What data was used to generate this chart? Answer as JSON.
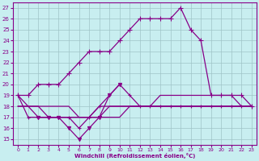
{
  "xlabel": "Windchill (Refroidissement éolien,°C)",
  "xlim": [
    -0.5,
    23.5
  ],
  "ylim": [
    14.5,
    27.5
  ],
  "yticks": [
    15,
    16,
    17,
    18,
    19,
    20,
    21,
    22,
    23,
    24,
    25,
    26,
    27
  ],
  "xticks": [
    0,
    1,
    2,
    3,
    4,
    5,
    6,
    7,
    8,
    9,
    10,
    11,
    12,
    13,
    14,
    15,
    16,
    17,
    18,
    19,
    20,
    21,
    22,
    23
  ],
  "bg_color": "#c8eef0",
  "line_color": "#880088",
  "grid_color": "#9fc4c7",
  "lines": [
    {
      "x": [
        0,
        1,
        2,
        3,
        4,
        5,
        6,
        7,
        8,
        9,
        10,
        11,
        12,
        13,
        14,
        15,
        16,
        17,
        18,
        19,
        20,
        21,
        22,
        23
      ],
      "y": [
        19,
        19,
        20,
        20,
        20,
        21,
        22,
        23,
        23,
        23,
        24,
        25,
        26,
        26,
        26,
        26,
        27,
        25,
        24,
        19,
        19,
        19,
        19,
        18
      ],
      "marker": "+",
      "markersize": 4,
      "linewidth": 0.9
    },
    {
      "x": [
        0,
        1,
        2,
        3,
        4,
        5,
        6,
        7,
        8,
        9,
        10,
        11,
        12,
        13,
        14,
        15,
        16,
        17,
        18,
        19,
        20,
        21,
        22,
        23
      ],
      "y": [
        19,
        17,
        17,
        17,
        17,
        17,
        16,
        17,
        18,
        19,
        20,
        19,
        18,
        18,
        18,
        18,
        18,
        18,
        18,
        18,
        18,
        18,
        18,
        18
      ],
      "marker": "+",
      "markersize": 3,
      "linewidth": 0.9
    },
    {
      "x": [
        0,
        1,
        2,
        3,
        4,
        5,
        6,
        7,
        8,
        9,
        10,
        11,
        12,
        13,
        14,
        15,
        16,
        17,
        18,
        19,
        20,
        21,
        22,
        23
      ],
      "y": [
        19,
        18,
        18,
        17,
        17,
        17,
        17,
        17,
        17,
        18,
        18,
        18,
        18,
        18,
        18,
        18,
        18,
        18,
        18,
        18,
        18,
        18,
        18,
        18
      ],
      "marker": null,
      "markersize": 0,
      "linewidth": 0.9
    },
    {
      "x": [
        0,
        1,
        2,
        3,
        4,
        5,
        6,
        7,
        8,
        9,
        10,
        11,
        12,
        13,
        14,
        15,
        16,
        17,
        18,
        19,
        20,
        21,
        22,
        23
      ],
      "y": [
        18,
        18,
        18,
        18,
        18,
        18,
        17,
        17,
        18,
        18,
        18,
        18,
        18,
        18,
        19,
        19,
        19,
        19,
        19,
        19,
        19,
        19,
        18,
        18
      ],
      "marker": null,
      "markersize": 0,
      "linewidth": 0.9
    },
    {
      "x": [
        0,
        1,
        2,
        3,
        4,
        5,
        6,
        7,
        8,
        9,
        10,
        11,
        12,
        13,
        14,
        15,
        16,
        17,
        18,
        19,
        20,
        21,
        22,
        23
      ],
      "y": [
        18,
        18,
        17,
        17,
        17,
        17,
        17,
        17,
        17,
        17,
        17,
        18,
        18,
        18,
        18,
        18,
        18,
        18,
        18,
        18,
        18,
        18,
        18,
        18
      ],
      "marker": null,
      "markersize": 0,
      "linewidth": 0.9
    },
    {
      "x": [
        2,
        3,
        4,
        5,
        6,
        7,
        8,
        9,
        10
      ],
      "y": [
        17,
        17,
        17,
        16,
        15,
        16,
        17,
        19,
        20
      ],
      "marker": "v",
      "markersize": 3,
      "linewidth": 0.9
    }
  ]
}
